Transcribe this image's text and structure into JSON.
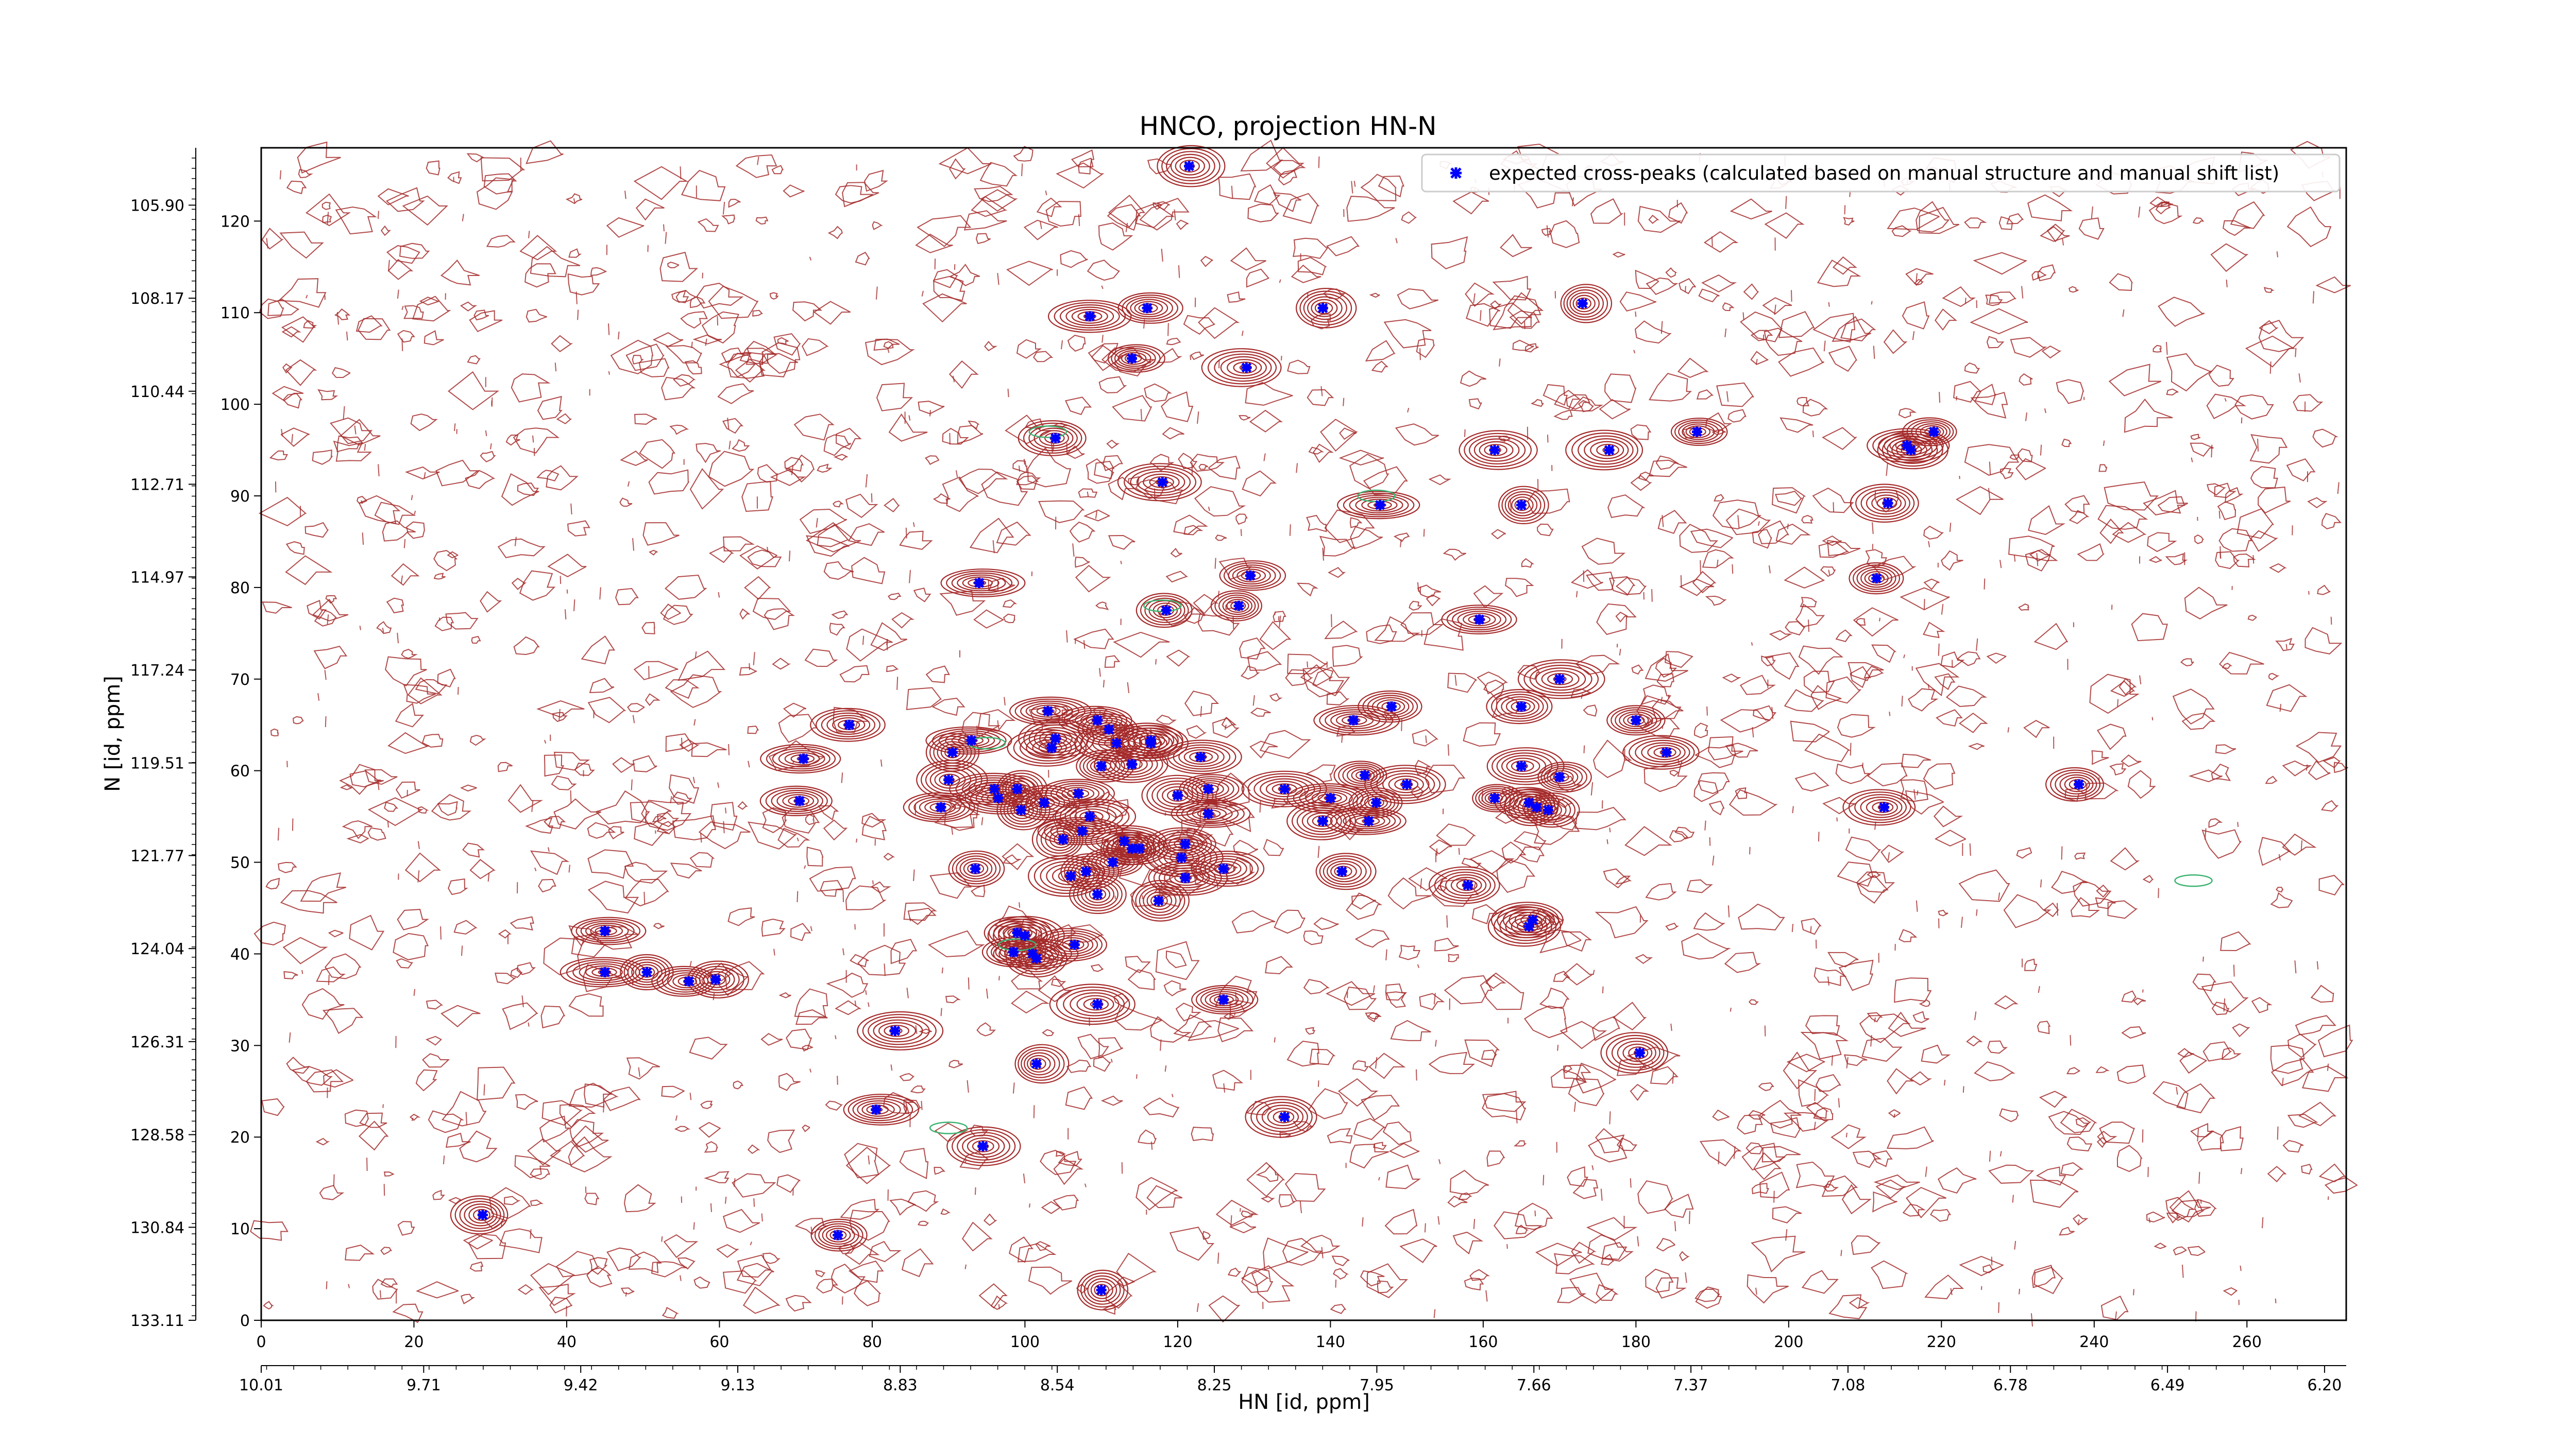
{
  "chart_data": {
    "type": "scatter",
    "title": "HNCO, projection HN-N",
    "xlabel": "HN [id, ppm]",
    "ylabel": "N [id, ppm]",
    "x_index_range": [
      0,
      273
    ],
    "y_index_range": [
      0,
      128
    ],
    "x_index_ticks": [
      "0",
      "20",
      "40",
      "60",
      "80",
      "100",
      "120",
      "140",
      "160",
      "180",
      "200",
      "220",
      "240",
      "260"
    ],
    "x_ppm_range": [
      10.01,
      6.16
    ],
    "x_ppm_ticks": [
      "10.01",
      "9.71",
      "9.42",
      "9.13",
      "8.83",
      "8.54",
      "8.25",
      "7.95",
      "7.66",
      "7.37",
      "7.08",
      "6.78",
      "6.49",
      "6.20"
    ],
    "y_index_ticks": [
      "0",
      "10",
      "20",
      "30",
      "40",
      "50",
      "60",
      "70",
      "80",
      "90",
      "100",
      "110",
      "120"
    ],
    "y_ppm_range": [
      133.11,
      104.5
    ],
    "y_ppm_ticks": [
      "133.11",
      "130.84",
      "128.58",
      "126.31",
      "124.04",
      "121.77",
      "119.51",
      "117.24",
      "114.97",
      "112.71",
      "110.44",
      "108.17",
      "105.90"
    ],
    "grid": false,
    "legend_position": "top-right",
    "colors": {
      "peaks": "#0000ff",
      "contour_positive": "#a52a2a",
      "contour_negative": "#3cb371"
    },
    "series": [
      {
        "name": "expected cross-peaks (calculated based on manual structure and manual shift list)",
        "points": [
          {
            "x": 29,
            "y": 11.5
          },
          {
            "x": 45,
            "y": 42.5
          },
          {
            "x": 45,
            "y": 38
          },
          {
            "x": 50.5,
            "y": 38
          },
          {
            "x": 56,
            "y": 37
          },
          {
            "x": 59.5,
            "y": 37.2
          },
          {
            "x": 70.5,
            "y": 56.7
          },
          {
            "x": 71,
            "y": 61.3
          },
          {
            "x": 77,
            "y": 65
          },
          {
            "x": 75.5,
            "y": 9.3
          },
          {
            "x": 80.5,
            "y": 23
          },
          {
            "x": 83,
            "y": 31.6
          },
          {
            "x": 89,
            "y": 56
          },
          {
            "x": 90,
            "y": 59
          },
          {
            "x": 90.5,
            "y": 62
          },
          {
            "x": 93,
            "y": 63.3
          },
          {
            "x": 93.5,
            "y": 49.3
          },
          {
            "x": 94,
            "y": 80.5
          },
          {
            "x": 94.5,
            "y": 19
          },
          {
            "x": 96,
            "y": 58
          },
          {
            "x": 96.5,
            "y": 57
          },
          {
            "x": 99,
            "y": 58
          },
          {
            "x": 99.5,
            "y": 55.7
          },
          {
            "x": 98.5,
            "y": 40.2
          },
          {
            "x": 99,
            "y": 42.3
          },
          {
            "x": 100,
            "y": 42
          },
          {
            "x": 101,
            "y": 40
          },
          {
            "x": 101.5,
            "y": 39.5
          },
          {
            "x": 101.5,
            "y": 28
          },
          {
            "x": 102.5,
            "y": 56.5
          },
          {
            "x": 103,
            "y": 66.5
          },
          {
            "x": 103.5,
            "y": 62.5
          },
          {
            "x": 104,
            "y": 96.3
          },
          {
            "x": 104,
            "y": 63.5
          },
          {
            "x": 105,
            "y": 52.5
          },
          {
            "x": 106,
            "y": 48.5
          },
          {
            "x": 106.5,
            "y": 41
          },
          {
            "x": 107,
            "y": 57.5
          },
          {
            "x": 107.5,
            "y": 53.4
          },
          {
            "x": 108,
            "y": 49
          },
          {
            "x": 108.5,
            "y": 109.6
          },
          {
            "x": 108.5,
            "y": 55
          },
          {
            "x": 109.5,
            "y": 65.5
          },
          {
            "x": 109.5,
            "y": 34.5
          },
          {
            "x": 109.5,
            "y": 46.5
          },
          {
            "x": 110,
            "y": 3.3
          },
          {
            "x": 110,
            "y": 60.5
          },
          {
            "x": 111,
            "y": 64.5
          },
          {
            "x": 111.5,
            "y": 50
          },
          {
            "x": 112,
            "y": 63
          },
          {
            "x": 113,
            "y": 52.3
          },
          {
            "x": 114,
            "y": 105
          },
          {
            "x": 114,
            "y": 60.7
          },
          {
            "x": 114,
            "y": 51.5
          },
          {
            "x": 115,
            "y": 51.5
          },
          {
            "x": 116,
            "y": 110.5
          },
          {
            "x": 116.5,
            "y": 63
          },
          {
            "x": 116.5,
            "y": 63.3
          },
          {
            "x": 117.5,
            "y": 45.8
          },
          {
            "x": 118,
            "y": 91.5
          },
          {
            "x": 118.5,
            "y": 77.5
          },
          {
            "x": 120,
            "y": 57.3
          },
          {
            "x": 120.5,
            "y": 50.5
          },
          {
            "x": 121,
            "y": 48.3
          },
          {
            "x": 121,
            "y": 52
          },
          {
            "x": 121.5,
            "y": 126
          },
          {
            "x": 123,
            "y": 61.5
          },
          {
            "x": 124,
            "y": 55.3
          },
          {
            "x": 124,
            "y": 58
          },
          {
            "x": 126,
            "y": 35
          },
          {
            "x": 126,
            "y": 49.3
          },
          {
            "x": 128,
            "y": 78
          },
          {
            "x": 129,
            "y": 104
          },
          {
            "x": 129.5,
            "y": 81.3
          },
          {
            "x": 134,
            "y": 22.2
          },
          {
            "x": 134,
            "y": 58
          },
          {
            "x": 139,
            "y": 110.5
          },
          {
            "x": 139,
            "y": 54.5
          },
          {
            "x": 140,
            "y": 57
          },
          {
            "x": 141.5,
            "y": 49
          },
          {
            "x": 143,
            "y": 65.5
          },
          {
            "x": 144.5,
            "y": 59.5
          },
          {
            "x": 145,
            "y": 54.5
          },
          {
            "x": 146,
            "y": 56.5
          },
          {
            "x": 146.5,
            "y": 89
          },
          {
            "x": 148,
            "y": 67
          },
          {
            "x": 150,
            "y": 58.5
          },
          {
            "x": 159.5,
            "y": 76.5
          },
          {
            "x": 158,
            "y": 47.5
          },
          {
            "x": 161.5,
            "y": 57
          },
          {
            "x": 161.5,
            "y": 95
          },
          {
            "x": 165,
            "y": 89
          },
          {
            "x": 165,
            "y": 60.5
          },
          {
            "x": 165,
            "y": 67
          },
          {
            "x": 166,
            "y": 56.5
          },
          {
            "x": 166,
            "y": 43
          },
          {
            "x": 166.5,
            "y": 43.7
          },
          {
            "x": 167,
            "y": 56
          },
          {
            "x": 168.5,
            "y": 55.7
          },
          {
            "x": 170,
            "y": 70
          },
          {
            "x": 170,
            "y": 59.3
          },
          {
            "x": 173,
            "y": 111
          },
          {
            "x": 176.5,
            "y": 95
          },
          {
            "x": 180,
            "y": 65.5
          },
          {
            "x": 180.5,
            "y": 29.2
          },
          {
            "x": 184,
            "y": 62
          },
          {
            "x": 188,
            "y": 97
          },
          {
            "x": 211.5,
            "y": 81
          },
          {
            "x": 212.5,
            "y": 56
          },
          {
            "x": 213,
            "y": 89.2
          },
          {
            "x": 215.5,
            "y": 95.5
          },
          {
            "x": 216,
            "y": 95
          },
          {
            "x": 219,
            "y": 97
          },
          {
            "x": 238,
            "y": 58.5
          }
        ]
      }
    ]
  }
}
